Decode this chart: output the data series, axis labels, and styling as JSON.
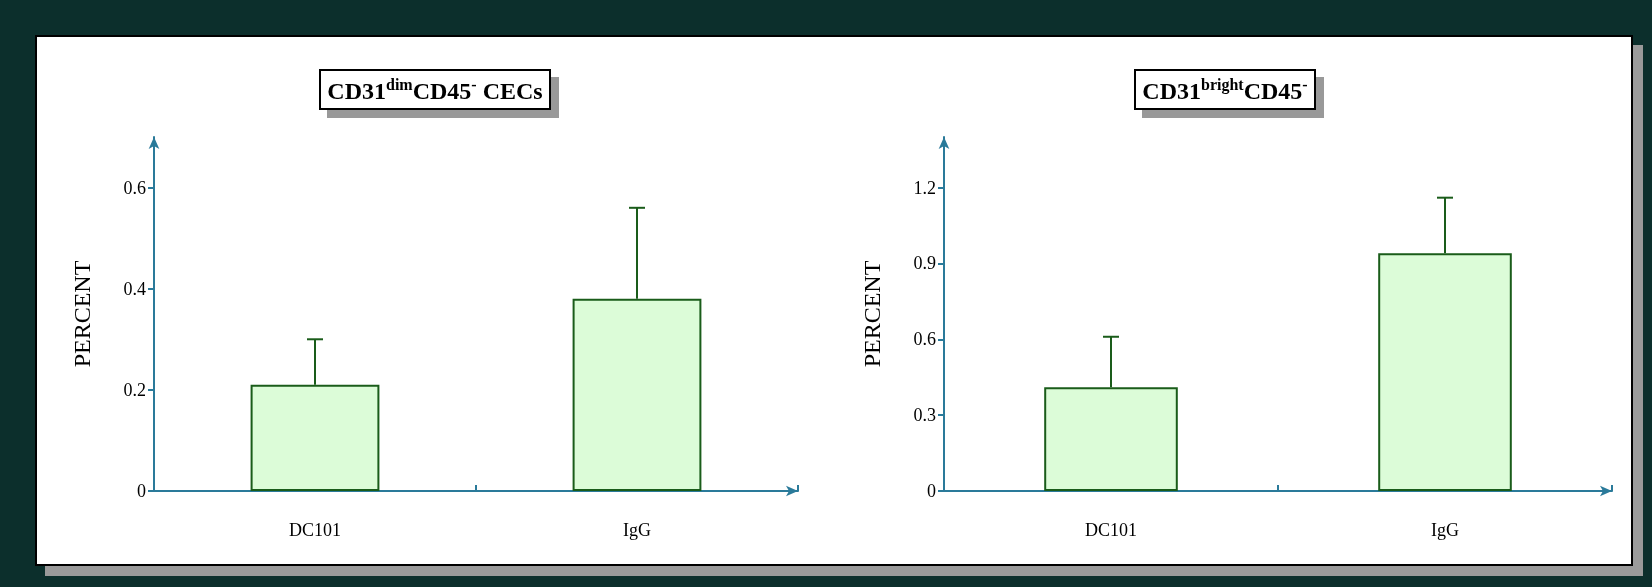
{
  "chart_data": [
    {
      "type": "bar",
      "title": "CD31$^{dim}$CD45$^{-}$ CECs",
      "ylabel": "PERCENT",
      "categories": [
        "DC101",
        "IgG"
      ],
      "values": [
        0.21,
        0.38
      ],
      "errors": [
        [
          0.21,
          0.3
        ],
        [
          0.38,
          0.56
        ]
      ],
      "color": "#dcfcd8",
      "ylim": [
        0,
        0.7
      ],
      "yticks": [
        0,
        0.2,
        0.4,
        0.6
      ]
    },
    {
      "type": "bar",
      "title": "CD31$^{bright}$CD45$^{-}$",
      "ylabel": "PERCENT",
      "categories": [
        "DC101",
        "IgG"
      ],
      "values": [
        0.41,
        0.94
      ],
      "errors": [
        [
          0.41,
          0.61
        ],
        [
          0.94,
          1.16
        ]
      ],
      "color": "#dcfcd8",
      "ylim": [
        0,
        1.4
      ],
      "yticks": [
        0,
        0.3,
        0.6,
        0.9,
        1.2
      ]
    }
  ]
}
